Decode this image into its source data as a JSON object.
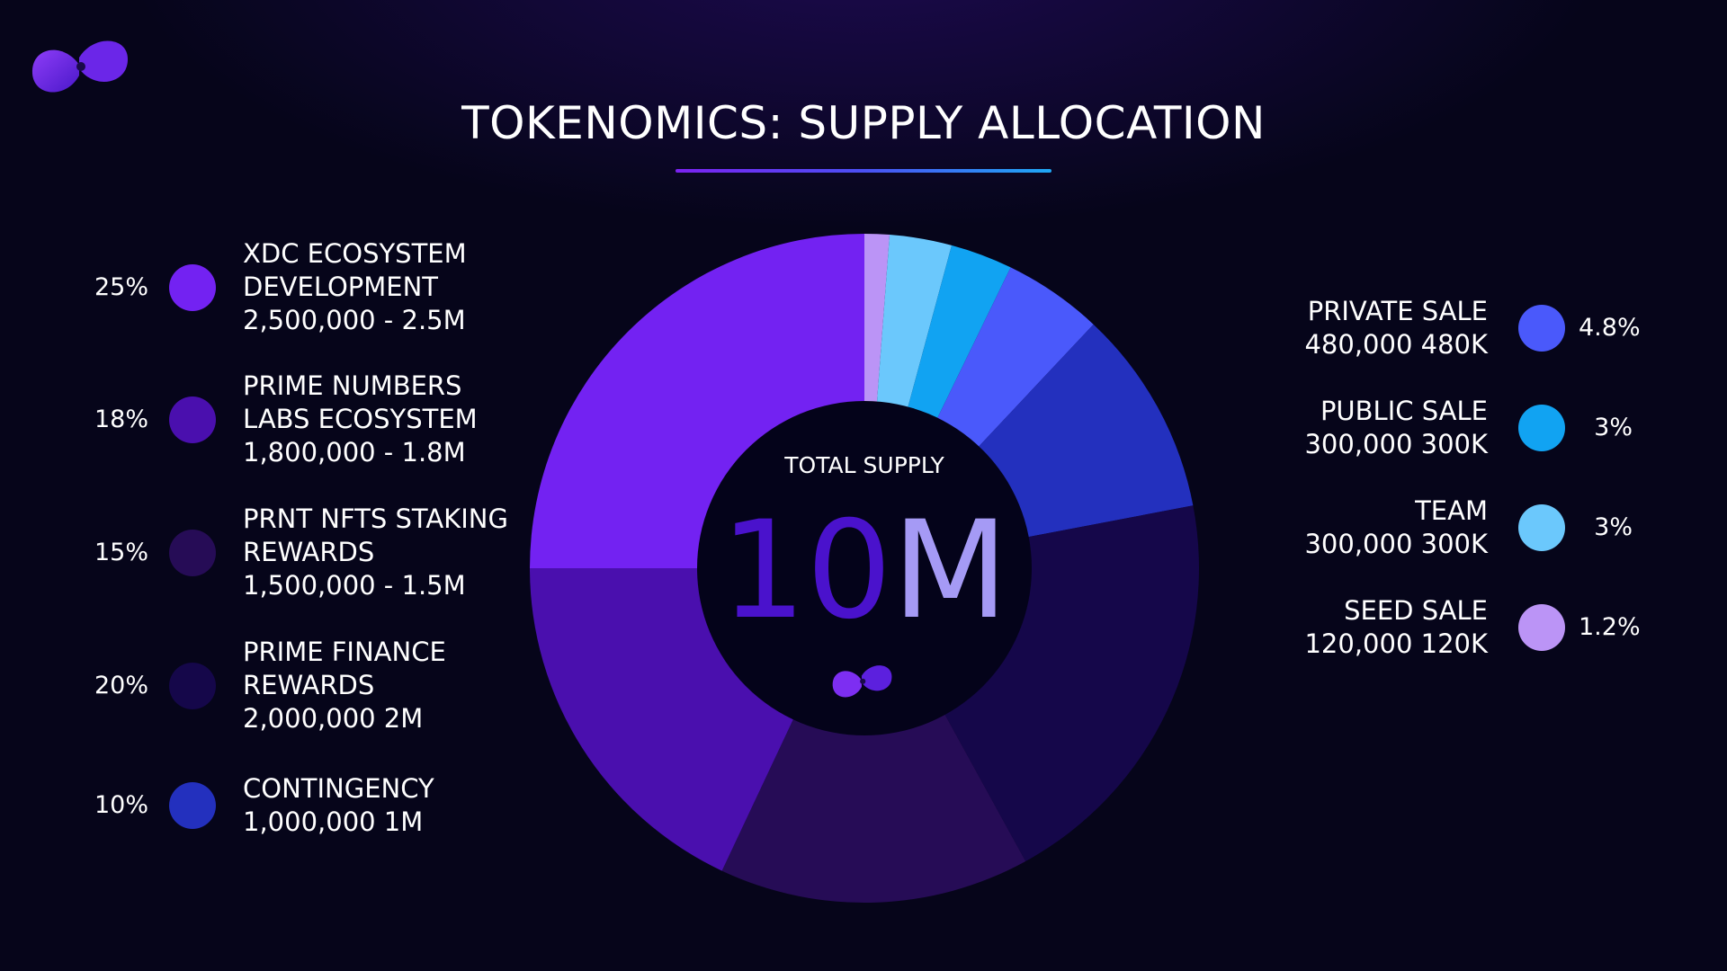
{
  "title": "TOKENOMICS: SUPPLY ALLOCATION",
  "center": {
    "label": "TOTAL SUPPLY",
    "value_part1": "10",
    "value_part2": "M"
  },
  "colors": {
    "background": "#06051a",
    "center_circle": "#04031a",
    "center_value_part1": "#4a12cc",
    "center_value_part2": "#a59af5"
  },
  "left_legend": [
    {
      "pct": "25%",
      "lines": [
        "XDC ECOSYSTEM",
        "DEVELOPMENT",
        "2,500,000 - 2.5M"
      ],
      "color": "#7322f2"
    },
    {
      "pct": "18%",
      "lines": [
        "PRIME NUMBERS",
        "LABS ECOSYSTEM",
        "1,800,000 - 1.8M"
      ],
      "color": "#4a0fae"
    },
    {
      "pct": "15%",
      "lines": [
        "PRNT NFTS STAKING",
        "REWARDS",
        "1,500,000 - 1.5M"
      ],
      "color": "#260c56"
    },
    {
      "pct": "20%",
      "lines": [
        "PRIME FINANCE",
        "REWARDS",
        "2,000,000 2M"
      ],
      "color": "#15074a"
    },
    {
      "pct": "10%",
      "lines": [
        "CONTINGENCY",
        "1,000,000 1M"
      ],
      "color": "#2330be"
    }
  ],
  "right_legend": [
    {
      "pct": "4.8%",
      "lines": [
        "PRIVATE SALE",
        "480,000 480K"
      ],
      "color": "#4a59fb"
    },
    {
      "pct": "3%",
      "lines": [
        "PUBLIC SALE",
        "300,000 300K"
      ],
      "color": "#11a3f2"
    },
    {
      "pct": "3%",
      "lines": [
        "TEAM",
        "300,000 300K"
      ],
      "color": "#6bc8fc"
    },
    {
      "pct": "1.2%",
      "lines": [
        "SEED SALE",
        "120,000 120K"
      ],
      "color": "#bb94f6"
    }
  ],
  "chart_data": {
    "type": "pie",
    "title": "TOKENOMICS: SUPPLY ALLOCATION",
    "center_text": "TOTAL SUPPLY 10M",
    "total": 10000000,
    "categories": [
      "SEED SALE",
      "TEAM",
      "PUBLIC SALE",
      "PRIVATE SALE",
      "CONTINGENCY",
      "PRIME FINANCE REWARDS",
      "PRNT NFTS STAKING REWARDS",
      "PRIME NUMBERS LABS ECOSYSTEM",
      "XDC ECOSYSTEM DEVELOPMENT"
    ],
    "values": [
      1.2,
      3,
      3,
      4.8,
      10,
      20,
      15,
      18,
      25
    ],
    "amounts": [
      120000,
      300000,
      300000,
      480000,
      1000000,
      2000000,
      1500000,
      1800000,
      2500000
    ],
    "colors": [
      "#bb94f6",
      "#6bc8fc",
      "#11a3f2",
      "#4a59fb",
      "#2330be",
      "#15074a",
      "#260c56",
      "#4a0fae",
      "#7322f2"
    ],
    "start": "12 o'clock",
    "direction": "clockwise",
    "legend_placement": "left and right"
  }
}
